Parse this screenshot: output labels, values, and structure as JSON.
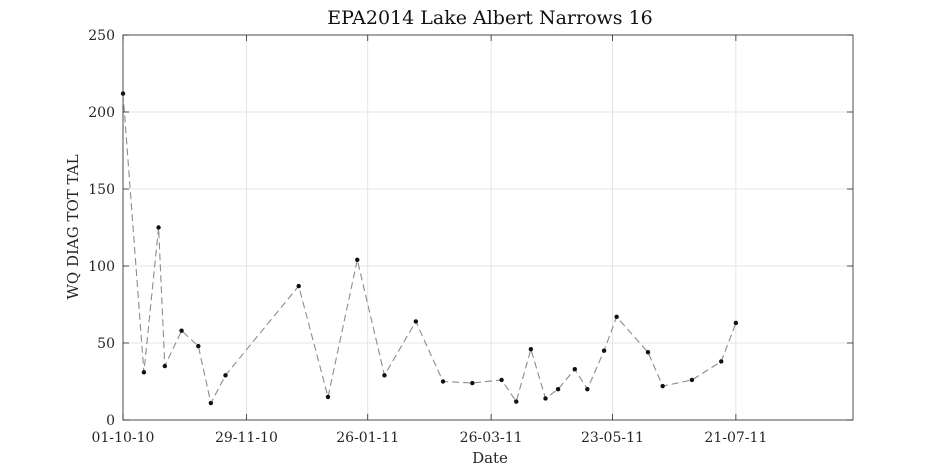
{
  "chart_data": {
    "type": "line",
    "title": "EPA2014 Lake Albert Narrows 16",
    "xlabel": "Date",
    "ylabel": "WQ DIAG TOT TAL",
    "xlim": [
      "2010-10-01",
      "2011-09-15"
    ],
    "ylim": [
      0,
      250
    ],
    "grid": true,
    "x_ticks": [
      "2010-10-01",
      "2010-11-29",
      "2011-01-26",
      "2011-03-26",
      "2011-05-23",
      "2011-07-21"
    ],
    "x_tick_labels": [
      "01-10-10",
      "29-11-10",
      "26-01-11",
      "26-03-11",
      "23-05-11",
      "21-07-11"
    ],
    "y_ticks": [
      0,
      50,
      100,
      150,
      200,
      250
    ],
    "y_tick_labels": [
      "0",
      "50",
      "100",
      "150",
      "200",
      "250"
    ],
    "series": [
      {
        "line_style": "dashed",
        "line_color": "#8c8c8c",
        "marker_color": "#111111",
        "points": [
          {
            "x": "2010-10-01",
            "y": 212
          },
          {
            "x": "2010-10-11",
            "y": 31
          },
          {
            "x": "2010-10-18",
            "y": 125
          },
          {
            "x": "2010-10-21",
            "y": 35
          },
          {
            "x": "2010-10-29",
            "y": 58
          },
          {
            "x": "2010-11-06",
            "y": 48
          },
          {
            "x": "2010-11-12",
            "y": 11
          },
          {
            "x": "2010-11-19",
            "y": 29
          },
          {
            "x": "2010-12-24",
            "y": 87
          },
          {
            "x": "2011-01-07",
            "y": 15
          },
          {
            "x": "2011-01-21",
            "y": 104
          },
          {
            "x": "2011-02-03",
            "y": 29
          },
          {
            "x": "2011-02-18",
            "y": 64
          },
          {
            "x": "2011-03-03",
            "y": 25
          },
          {
            "x": "2011-03-17",
            "y": 24
          },
          {
            "x": "2011-03-31",
            "y": 26
          },
          {
            "x": "2011-04-07",
            "y": 12
          },
          {
            "x": "2011-04-14",
            "y": 46
          },
          {
            "x": "2011-04-21",
            "y": 14
          },
          {
            "x": "2011-04-27",
            "y": 20
          },
          {
            "x": "2011-05-05",
            "y": 33
          },
          {
            "x": "2011-05-11",
            "y": 20
          },
          {
            "x": "2011-05-19",
            "y": 45
          },
          {
            "x": "2011-05-25",
            "y": 67
          },
          {
            "x": "2011-06-09",
            "y": 44
          },
          {
            "x": "2011-06-16",
            "y": 22
          },
          {
            "x": "2011-06-30",
            "y": 26
          },
          {
            "x": "2011-07-14",
            "y": 38
          },
          {
            "x": "2011-07-21",
            "y": 63
          }
        ]
      }
    ]
  }
}
